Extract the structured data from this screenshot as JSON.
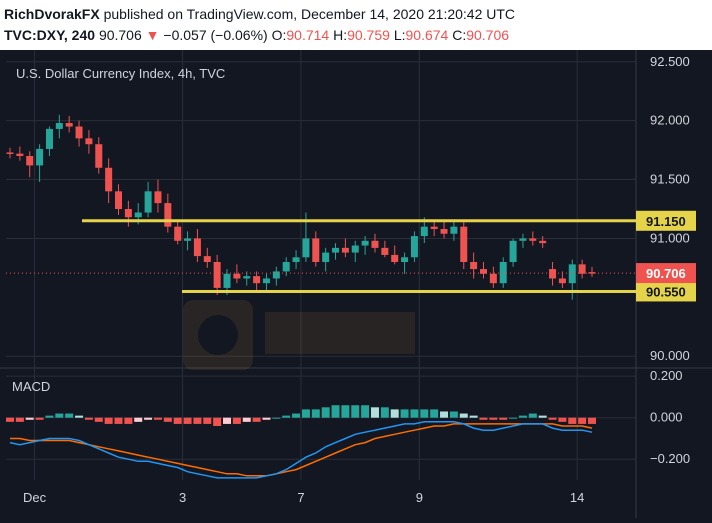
{
  "header": {
    "author": "RichDvorakFX",
    "published_text": "published on TradingView.com, December 14, 2020 21:20:42 UTC",
    "symbol": "TVC:DXY, 240",
    "last": "90.706",
    "change": "−0.057 (−0.06%)",
    "o_label": "O:",
    "o_val": "90.714",
    "h_label": "H:",
    "h_val": "90.759",
    "l_label": "L:",
    "l_val": "90.674",
    "c_label": "C:",
    "c_val": "90.706"
  },
  "chart_data": [
    {
      "type": "candlestick",
      "title": "U.S. Dollar Currency Index, 4h, TVC",
      "ylim": [
        89.9,
        92.6
      ],
      "y_ticks": [
        "92.500",
        "92.000",
        "91.500",
        "91.000",
        "90.000"
      ],
      "x_ticks": [
        "Dec",
        "3",
        "7",
        "9",
        "14"
      ],
      "levels": [
        {
          "label": "91.150",
          "value": 91.15,
          "color": "#e5d44a"
        },
        {
          "label": "90.550",
          "value": 90.55,
          "color": "#e5d44a"
        }
      ],
      "last_price": {
        "label": "90.706",
        "value": 90.706,
        "color": "#ef5350"
      },
      "candles": [
        [
          91.73,
          91.77,
          91.68,
          91.72
        ],
        [
          91.72,
          91.78,
          91.66,
          91.7
        ],
        [
          91.7,
          91.74,
          91.52,
          91.62
        ],
        [
          91.62,
          91.8,
          91.48,
          91.76
        ],
        [
          91.76,
          91.95,
          91.7,
          91.93
        ],
        [
          91.93,
          92.05,
          91.85,
          91.98
        ],
        [
          91.98,
          92.04,
          91.9,
          91.95
        ],
        [
          91.95,
          92.0,
          91.78,
          91.85
        ],
        [
          91.85,
          91.92,
          91.72,
          91.8
        ],
        [
          91.8,
          91.86,
          91.55,
          91.6
        ],
        [
          91.6,
          91.68,
          91.3,
          91.4
        ],
        [
          91.4,
          91.46,
          91.2,
          91.25
        ],
        [
          91.25,
          91.32,
          91.1,
          91.18
        ],
        [
          91.18,
          91.3,
          91.12,
          91.22
        ],
        [
          91.22,
          91.48,
          91.18,
          91.4
        ],
        [
          91.4,
          91.5,
          91.22,
          91.3
        ],
        [
          91.3,
          91.38,
          91.05,
          91.1
        ],
        [
          91.1,
          91.16,
          90.95,
          90.98
        ],
        [
          90.98,
          91.06,
          90.9,
          91.0
        ],
        [
          91.0,
          91.08,
          90.8,
          90.85
        ],
        [
          90.85,
          90.92,
          90.75,
          90.8
        ],
        [
          90.8,
          90.86,
          90.52,
          90.58
        ],
        [
          90.58,
          90.74,
          90.52,
          90.7
        ],
        [
          90.7,
          90.78,
          90.62,
          90.66
        ],
        [
          90.66,
          90.72,
          90.6,
          90.68
        ],
        [
          90.68,
          90.72,
          90.56,
          90.62
        ],
        [
          90.62,
          90.7,
          90.56,
          90.66
        ],
        [
          90.66,
          90.76,
          90.6,
          90.72
        ],
        [
          90.72,
          90.84,
          90.68,
          90.8
        ],
        [
          90.8,
          90.9,
          90.74,
          90.84
        ],
        [
          90.84,
          91.22,
          90.8,
          91.0
        ],
        [
          91.0,
          91.06,
          90.76,
          90.8
        ],
        [
          90.8,
          90.92,
          90.72,
          90.88
        ],
        [
          90.88,
          90.96,
          90.82,
          90.92
        ],
        [
          90.92,
          91.0,
          90.84,
          90.88
        ],
        [
          90.88,
          90.98,
          90.8,
          90.94
        ],
        [
          90.94,
          91.02,
          90.86,
          90.98
        ],
        [
          90.98,
          91.04,
          90.88,
          90.92
        ],
        [
          90.92,
          90.98,
          90.84,
          90.86
        ],
        [
          90.86,
          90.94,
          90.78,
          90.8
        ],
        [
          90.8,
          90.88,
          90.7,
          90.84
        ],
        [
          90.84,
          91.06,
          90.8,
          91.02
        ],
        [
          91.02,
          91.18,
          90.96,
          91.1
        ],
        [
          91.1,
          91.16,
          91.02,
          91.08
        ],
        [
          91.08,
          91.14,
          91.0,
          91.04
        ],
        [
          91.04,
          91.14,
          90.98,
          91.1
        ],
        [
          91.1,
          91.16,
          90.74,
          90.8
        ],
        [
          90.8,
          90.88,
          90.66,
          90.74
        ],
        [
          90.74,
          90.8,
          90.66,
          90.7
        ],
        [
          90.7,
          90.76,
          90.58,
          90.62
        ],
        [
          90.62,
          90.84,
          90.58,
          90.8
        ],
        [
          90.8,
          91.0,
          90.76,
          90.98
        ],
        [
          90.98,
          91.04,
          90.92,
          91.0
        ],
        [
          91.0,
          91.06,
          90.94,
          90.98
        ],
        [
          90.98,
          91.02,
          90.92,
          90.96
        ],
        [
          90.74,
          90.8,
          90.6,
          90.66
        ],
        [
          90.66,
          90.72,
          90.58,
          90.62
        ],
        [
          90.62,
          90.82,
          90.48,
          90.78
        ],
        [
          90.78,
          90.82,
          90.66,
          90.7
        ],
        [
          90.714,
          90.759,
          90.674,
          90.706
        ]
      ]
    },
    {
      "type": "macd",
      "title": "MACD",
      "ylim": [
        -0.3,
        0.22
      ],
      "y_ticks": [
        "0.200",
        "0.000",
        "−0.200"
      ],
      "histogram": [
        -0.02,
        -0.02,
        -0.01,
        -0.01,
        0.01,
        0.02,
        0.02,
        0.01,
        -0.01,
        -0.02,
        -0.03,
        -0.03,
        -0.03,
        -0.02,
        -0.01,
        -0.01,
        -0.02,
        -0.03,
        -0.03,
        -0.03,
        -0.03,
        -0.04,
        -0.03,
        -0.03,
        -0.02,
        -0.02,
        -0.01,
        0.0,
        0.01,
        0.02,
        0.04,
        0.04,
        0.05,
        0.06,
        0.06,
        0.06,
        0.06,
        0.05,
        0.05,
        0.04,
        0.04,
        0.04,
        0.04,
        0.04,
        0.03,
        0.03,
        0.02,
        0.01,
        -0.01,
        -0.01,
        -0.01,
        0.0,
        0.01,
        0.02,
        0.01,
        -0.01,
        -0.02,
        -0.03,
        -0.03,
        -0.03
      ],
      "macd": [
        -0.12,
        -0.13,
        -0.12,
        -0.11,
        -0.1,
        -0.1,
        -0.1,
        -0.11,
        -0.13,
        -0.15,
        -0.17,
        -0.19,
        -0.2,
        -0.21,
        -0.21,
        -0.22,
        -0.23,
        -0.24,
        -0.26,
        -0.27,
        -0.28,
        -0.29,
        -0.29,
        -0.29,
        -0.29,
        -0.29,
        -0.28,
        -0.27,
        -0.25,
        -0.22,
        -0.19,
        -0.17,
        -0.14,
        -0.12,
        -0.1,
        -0.08,
        -0.07,
        -0.06,
        -0.05,
        -0.04,
        -0.03,
        -0.03,
        -0.02,
        -0.02,
        -0.02,
        -0.02,
        -0.03,
        -0.05,
        -0.06,
        -0.06,
        -0.05,
        -0.04,
        -0.03,
        -0.03,
        -0.03,
        -0.05,
        -0.06,
        -0.06,
        -0.06,
        -0.07
      ],
      "signal": [
        -0.1,
        -0.1,
        -0.11,
        -0.11,
        -0.11,
        -0.11,
        -0.11,
        -0.12,
        -0.13,
        -0.14,
        -0.15,
        -0.16,
        -0.17,
        -0.18,
        -0.19,
        -0.2,
        -0.21,
        -0.22,
        -0.23,
        -0.24,
        -0.25,
        -0.26,
        -0.27,
        -0.27,
        -0.28,
        -0.28,
        -0.28,
        -0.27,
        -0.26,
        -0.25,
        -0.23,
        -0.21,
        -0.19,
        -0.17,
        -0.15,
        -0.13,
        -0.12,
        -0.1,
        -0.09,
        -0.08,
        -0.07,
        -0.06,
        -0.05,
        -0.04,
        -0.04,
        -0.03,
        -0.03,
        -0.03,
        -0.03,
        -0.03,
        -0.03,
        -0.03,
        -0.03,
        -0.03,
        -0.03,
        -0.03,
        -0.04,
        -0.04,
        -0.04,
        -0.05
      ],
      "macd_color": "#2196f3",
      "signal_color": "#ff6d00"
    }
  ],
  "colors": {
    "up": "#26a69a",
    "down": "#ef5350",
    "hist_up_strong": "#26a69a",
    "hist_up_weak": "#b2dfdb",
    "hist_down_strong": "#ef5350",
    "hist_down_weak": "#ffcdd2",
    "background": "#131722",
    "grid": "#2a2e39"
  }
}
